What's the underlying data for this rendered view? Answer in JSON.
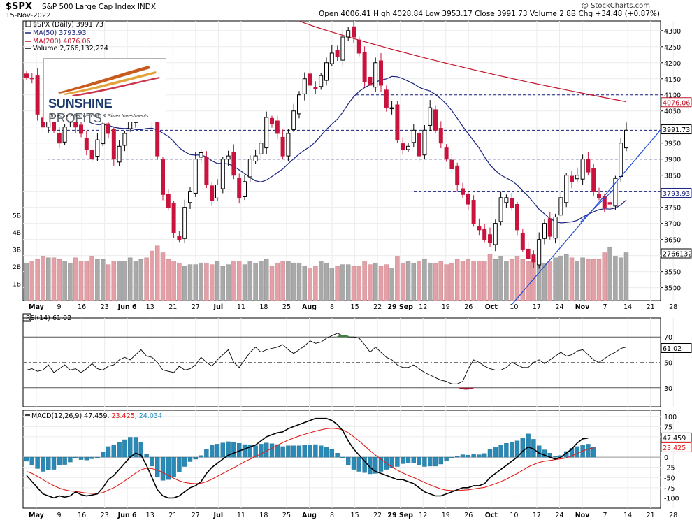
{
  "header": {
    "symbol": "$SPX",
    "name": "S&P 500 Large Cap Index",
    "exchange": "INDX",
    "date": "15-Nov-2022",
    "ohlc_line": "Open 4006.41  High 4028.84  Low 3953.17  Close 3991.73  Volume 2.8B  Chg +34.48 (+0.87%)",
    "watermark": "@ StockCharts.com"
  },
  "logo": {
    "word1": "SUNSHINE",
    "word2": "PROFITS",
    "tagline": "Tools for Effective Gold & Silver Investments"
  },
  "colors": {
    "up_candle": "#000000",
    "down_candle": "#c8143c",
    "ma50": "#1a237e",
    "ma200": "#c0142a",
    "volume_up": "#a9a9a9",
    "volume_down": "#e3a0a6",
    "trendline": "#1f4bd6",
    "macd_line": "#000000",
    "signal_line": "#e0201b",
    "histogram": "#2a8ab5",
    "rsi_line": "#000000"
  },
  "chart_data": [
    {
      "type": "candlestick",
      "title": "$SPX (Daily) 3991.73",
      "legend": [
        {
          "name": "$SPX (Daily)",
          "value": "3991.73",
          "color": "#000000"
        },
        {
          "name": "MA(50)",
          "value": "3793.93",
          "color": "#1a237e"
        },
        {
          "name": "MA(200)",
          "value": "4076.06",
          "color": "#c0142a"
        },
        {
          "name": "Volume",
          "value": "2,766,132,224",
          "color": "#000000"
        }
      ],
      "ylim": [
        3460,
        4330
      ],
      "y_ticks": [
        3500,
        3550,
        3600,
        3650,
        3700,
        3750,
        3800,
        3850,
        3900,
        3950,
        4000,
        4050,
        4100,
        4150,
        4200,
        4250,
        4300
      ],
      "x_tick_labels": [
        "May",
        "9",
        "16",
        "23",
        "Jun 6",
        "13",
        "21",
        "27",
        "Jul",
        "11",
        "18",
        "25",
        "Aug",
        "8",
        "15",
        "22",
        "29 Sep",
        "12",
        "19",
        "26",
        "Oct",
        "10",
        "17",
        "24",
        "Nov",
        "7",
        "14",
        "21",
        "28"
      ],
      "value_tags": [
        {
          "label": "4076.06",
          "value": 4076.06,
          "color": "#c0142a"
        },
        {
          "label": "3991.73",
          "value": 3991.73,
          "color": "#000000"
        },
        {
          "label": "3793.93",
          "value": 3793.93,
          "color": "#1a237e"
        }
      ],
      "horizontal_levels": [
        4100,
        3990,
        3900,
        3800
      ],
      "close_path": [
        4155,
        4150,
        4040,
        4000,
        4020,
        3990,
        3950,
        4000,
        4030,
        4000,
        3980,
        3930,
        3900,
        3960,
        4010,
        3980,
        3900,
        3940,
        3980,
        4020,
        4060,
        4150,
        4110,
        4020,
        3910,
        3790,
        3750,
        3670,
        3650,
        3750,
        3800,
        3900,
        3920,
        3820,
        3770,
        3820,
        3900,
        3910,
        3850,
        3780,
        3830,
        3900,
        3910,
        3950,
        4030,
        4010,
        3980,
        3910,
        3980,
        4050,
        4100,
        4150,
        4130,
        4120,
        4160,
        4200,
        4230,
        4220,
        4280,
        4300,
        4280,
        4230,
        4140,
        4130,
        4200,
        4130,
        4060,
        4060,
        3960,
        3930,
        3940,
        3990,
        3910,
        3990,
        4060,
        3990,
        3950,
        3900,
        3870,
        3820,
        3790,
        3760,
        3700,
        3680,
        3650,
        3640,
        3700,
        3780,
        3780,
        3750,
        3680,
        3620,
        3590,
        3580,
        3650,
        3700,
        3660,
        3720,
        3780,
        3850,
        3830,
        3850,
        3900,
        3860,
        3800,
        3780,
        3750,
        3760,
        3840,
        3950,
        3990
      ],
      "volume": {
        "y_ticks": [
          "1B",
          "2B",
          "3B",
          "4B",
          "5B"
        ],
        "ylim": [
          0,
          5.6
        ],
        "values": [
          2.2,
          2.3,
          2.4,
          2.6,
          2.5,
          2.5,
          2.4,
          2.3,
          2.2,
          2.5,
          2.3,
          2.3,
          2.6,
          2.4,
          2.4,
          2.1,
          2.3,
          2.3,
          2.3,
          2.5,
          2.3,
          2.4,
          2.5,
          2.9,
          3.2,
          2.8,
          2.4,
          2.3,
          2.2,
          2.0,
          2.1,
          2.1,
          2.2,
          2.2,
          2.1,
          2.3,
          2.0,
          2.1,
          2.3,
          2.3,
          2.1,
          2.3,
          2.2,
          2.3,
          2.4,
          2.0,
          2.2,
          2.3,
          2.3,
          2.2,
          2.2,
          2.0,
          1.9,
          2.0,
          2.3,
          2.2,
          1.9,
          2.0,
          2.1,
          2.1,
          2.0,
          2.0,
          2.3,
          2.1,
          2.2,
          2.0,
          2.1,
          1.9,
          2.6,
          2.2,
          2.3,
          2.2,
          2.3,
          2.4,
          2.2,
          2.2,
          2.3,
          2.1,
          2.2,
          2.4,
          2.3,
          2.4,
          2.3,
          2.3,
          2.3,
          2.7,
          2.4,
          2.6,
          2.3,
          2.4,
          2.6,
          2.4,
          2.3,
          2.4,
          2.2,
          2.2,
          2.3,
          2.5,
          2.6,
          2.7,
          2.5,
          2.3,
          2.5,
          2.4,
          2.4,
          2.4,
          2.8,
          3.1,
          2.6,
          2.5,
          2.8
        ]
      }
    },
    {
      "type": "line",
      "title": "RSI(14) 61.02",
      "ylim": [
        15,
        85
      ],
      "y_ticks": [
        30,
        50,
        70
      ],
      "reference_lines": [
        70,
        50,
        30
      ],
      "value_tag": "61.02",
      "series": [
        {
          "name": "RSI(14)",
          "values": [
            44,
            45,
            43,
            44,
            48,
            42,
            45,
            48,
            44,
            45,
            42,
            45,
            49,
            45,
            44,
            47,
            48,
            52,
            54,
            52,
            56,
            60,
            55,
            54,
            50,
            44,
            43,
            42,
            47,
            44,
            45,
            48,
            54,
            50,
            47,
            52,
            56,
            60,
            50,
            46,
            52,
            58,
            62,
            58,
            60,
            61,
            62,
            64,
            60,
            57,
            60,
            63,
            67,
            65,
            66,
            69,
            71,
            73,
            71,
            70,
            70,
            69,
            64,
            58,
            62,
            58,
            54,
            52,
            48,
            46,
            46,
            48,
            45,
            42,
            40,
            38,
            36,
            35,
            33,
            33,
            35,
            45,
            52,
            50,
            47,
            45,
            44,
            44,
            46,
            50,
            48,
            46,
            46,
            50,
            52,
            49,
            52,
            55,
            58,
            55,
            56,
            59,
            60,
            56,
            52,
            50,
            53,
            56,
            58,
            61,
            62
          ]
        }
      ]
    },
    {
      "type": "line",
      "title": "MACD(12,26,9) 47.459, 23.425, 24.034",
      "ylim": [
        -125,
        115
      ],
      "y_ticks": [
        -100,
        -75,
        -50,
        -25,
        0,
        25,
        50,
        75,
        100
      ],
      "value_tags": [
        {
          "label": "47.459",
          "value": 47.459,
          "color": "#000000"
        },
        {
          "label": "23.425",
          "value": 23.425,
          "color": "#e0201b"
        }
      ],
      "series": [
        {
          "name": "MACD(12,26,9)",
          "value": "47.459",
          "values": [
            -45,
            -60,
            -75,
            -90,
            -95,
            -100,
            -95,
            -98,
            -95,
            -85,
            -92,
            -95,
            -93,
            -90,
            -75,
            -55,
            -45,
            -30,
            -15,
            0,
            10,
            5,
            -20,
            -50,
            -80,
            -95,
            -100,
            -100,
            -95,
            -85,
            -75,
            -70,
            -60,
            -40,
            -25,
            -15,
            -5,
            5,
            10,
            15,
            20,
            25,
            30,
            40,
            50,
            55,
            60,
            62,
            70,
            75,
            80,
            85,
            90,
            95,
            95,
            95,
            90,
            80,
            65,
            40,
            20,
            5,
            -10,
            -25,
            -35,
            -40,
            -45,
            -50,
            -55,
            -55,
            -60,
            -65,
            -75,
            -85,
            -90,
            -95,
            -95,
            -90,
            -85,
            -80,
            -75,
            -75,
            -70,
            -70,
            -65,
            -50,
            -40,
            -30,
            -20,
            -10,
            0,
            15,
            25,
            20,
            10,
            5,
            0,
            -5,
            0,
            10,
            20,
            35,
            45,
            47
          ]
        },
        {
          "name": "signal",
          "value": "23.425",
          "values": [
            -35,
            -40,
            -47,
            -55,
            -63,
            -70,
            -76,
            -80,
            -83,
            -84,
            -86,
            -88,
            -89,
            -89,
            -87,
            -81,
            -75,
            -67,
            -58,
            -49,
            -39,
            -31,
            -27,
            -28,
            -32,
            -38,
            -45,
            -52,
            -58,
            -62,
            -64,
            -65,
            -64,
            -60,
            -54,
            -47,
            -40,
            -33,
            -26,
            -19,
            -11,
            -5,
            2,
            8,
            15,
            22,
            29,
            36,
            42,
            47,
            52,
            56,
            60,
            64,
            67,
            70,
            71,
            70,
            67,
            60,
            50,
            40,
            28,
            16,
            5,
            -5,
            -15,
            -24,
            -32,
            -39,
            -45,
            -50,
            -56,
            -62,
            -68,
            -73,
            -78,
            -81,
            -82,
            -82,
            -81,
            -80,
            -78,
            -76,
            -74,
            -70,
            -65,
            -60,
            -54,
            -47,
            -40,
            -32,
            -24,
            -18,
            -13,
            -10,
            -8,
            -6,
            -4,
            -2,
            3,
            9,
            15,
            20,
            23
          ]
        },
        {
          "name": "histogram",
          "value": "24.034",
          "values": [
            -10,
            -20,
            -28,
            -35,
            -32,
            -30,
            -19,
            -18,
            -12,
            -1,
            -6,
            -7,
            -4,
            -1,
            12,
            26,
            30,
            37,
            43,
            49,
            49,
            36,
            7,
            -22,
            -48,
            -57,
            -55,
            -48,
            -37,
            -23,
            -11,
            -5,
            4,
            20,
            29,
            32,
            35,
            38,
            36,
            34,
            31,
            30,
            28,
            32,
            35,
            33,
            31,
            26,
            28,
            28,
            28,
            29,
            30,
            31,
            28,
            25,
            19,
            10,
            -2,
            -20,
            -30,
            -35,
            -38,
            -41,
            -40,
            -35,
            -30,
            -26,
            -23,
            -16,
            -15,
            -15,
            -19,
            -23,
            -22,
            -22,
            -17,
            -9,
            -3,
            2,
            6,
            5,
            8,
            6,
            9,
            20,
            25,
            30,
            34,
            37,
            40,
            47,
            57,
            44,
            28,
            18,
            10,
            3,
            4,
            14,
            22,
            26,
            30,
            32,
            24
          ]
        }
      ]
    }
  ]
}
